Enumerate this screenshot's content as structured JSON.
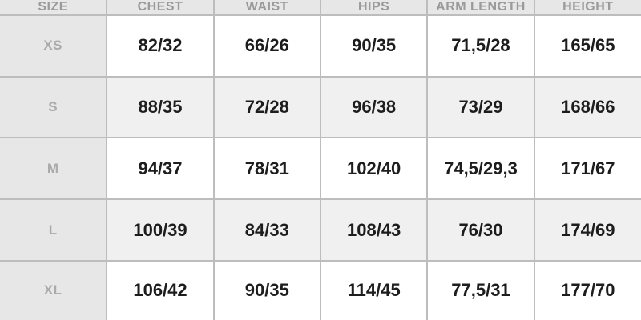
{
  "chart_data": {
    "type": "table",
    "columns": [
      "SIZE",
      "CHEST",
      "WAIST",
      "HIPS",
      "ARM LENGTH",
      "HEIGHT"
    ],
    "rows": [
      {
        "label": "XS",
        "values": [
          "82/32",
          "66/26",
          "90/35",
          "71,5/28",
          "165/65"
        ]
      },
      {
        "label": "S",
        "values": [
          "88/35",
          "72/28",
          "96/38",
          "73/29",
          "168/66"
        ]
      },
      {
        "label": "M",
        "values": [
          "94/37",
          "78/31",
          "102/40",
          "74,5/29,3",
          "171/67"
        ]
      },
      {
        "label": "L",
        "values": [
          "100/39",
          "84/33",
          "108/43",
          "76/30",
          "174/69"
        ]
      },
      {
        "label": "XL",
        "values": [
          "106/42",
          "90/35",
          "114/45",
          "77,5/31",
          "177/70"
        ]
      }
    ]
  },
  "colors": {
    "header_bg": "#e7e7e7",
    "stripe_row_bg": "#f0f0f0",
    "plain_row_bg": "#ffffff",
    "grid_border": "#bdbdbd",
    "header_text": "#9a9a9a",
    "label_text": "#aaaaaa",
    "data_text": "#1d1d1d"
  }
}
